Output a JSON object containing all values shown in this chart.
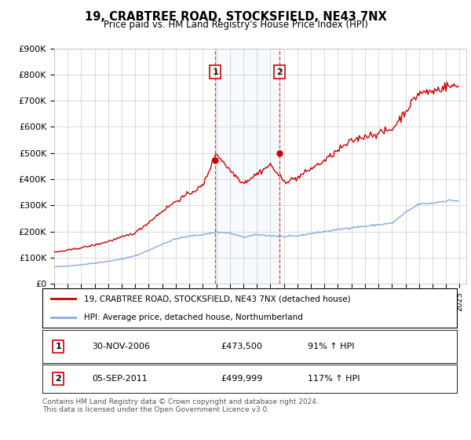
{
  "title": "19, CRABTREE ROAD, STOCKSFIELD, NE43 7NX",
  "subtitle": "Price paid vs. HM Land Registry's House Price Index (HPI)",
  "ylim": [
    0,
    900000
  ],
  "xlim_start": 1995.0,
  "xlim_end": 2025.5,
  "sale1_date": 2006.92,
  "sale1_price": 473500,
  "sale2_date": 2011.67,
  "sale2_price": 499999,
  "red_line_color": "#cc0000",
  "blue_line_color": "#88aadd",
  "vline_color": "#cc2222",
  "marker_box_color": "#cc0000",
  "background_color": "#ffffff",
  "grid_color": "#cccccc",
  "legend_label_red": "19, CRABTREE ROAD, STOCKSFIELD, NE43 7NX (detached house)",
  "legend_label_blue": "HPI: Average price, detached house, Northumberland",
  "footer": "Contains HM Land Registry data © Crown copyright and database right 2024.\nThis data is licensed under the Open Government Licence v3.0.",
  "yticks": [
    0,
    100000,
    200000,
    300000,
    400000,
    500000,
    600000,
    700000,
    800000,
    900000
  ],
  "ytick_labels": [
    "£0",
    "£100K",
    "£200K",
    "£300K",
    "£400K",
    "£500K",
    "£600K",
    "£700K",
    "£800K",
    "£900K"
  ],
  "red_base": {
    "1995": 120000,
    "1996": 128000,
    "1997": 138000,
    "1998": 148000,
    "1999": 162000,
    "2000": 178000,
    "2001": 195000,
    "2002": 235000,
    "2003": 278000,
    "2004": 315000,
    "2005": 345000,
    "2006": 375000,
    "2007": 500000,
    "2008": 435000,
    "2009": 385000,
    "2010": 420000,
    "2011": 455000,
    "2012": 390000,
    "2013": 405000,
    "2014": 440000,
    "2015": 470000,
    "2016": 510000,
    "2017": 545000,
    "2018": 565000,
    "2019": 575000,
    "2020": 590000,
    "2021": 660000,
    "2022": 730000,
    "2023": 735000,
    "2024": 755000
  },
  "blue_base": {
    "1995": 65000,
    "1996": 68000,
    "1997": 73000,
    "1998": 79000,
    "1999": 86000,
    "2000": 95000,
    "2001": 107000,
    "2002": 128000,
    "2003": 152000,
    "2004": 172000,
    "2005": 182000,
    "2006": 188000,
    "2007": 198000,
    "2008": 194000,
    "2009": 178000,
    "2010": 188000,
    "2011": 184000,
    "2012": 180000,
    "2013": 183000,
    "2014": 192000,
    "2015": 200000,
    "2016": 207000,
    "2017": 215000,
    "2018": 220000,
    "2019": 226000,
    "2020": 232000,
    "2021": 272000,
    "2022": 305000,
    "2023": 308000,
    "2024": 318000
  }
}
